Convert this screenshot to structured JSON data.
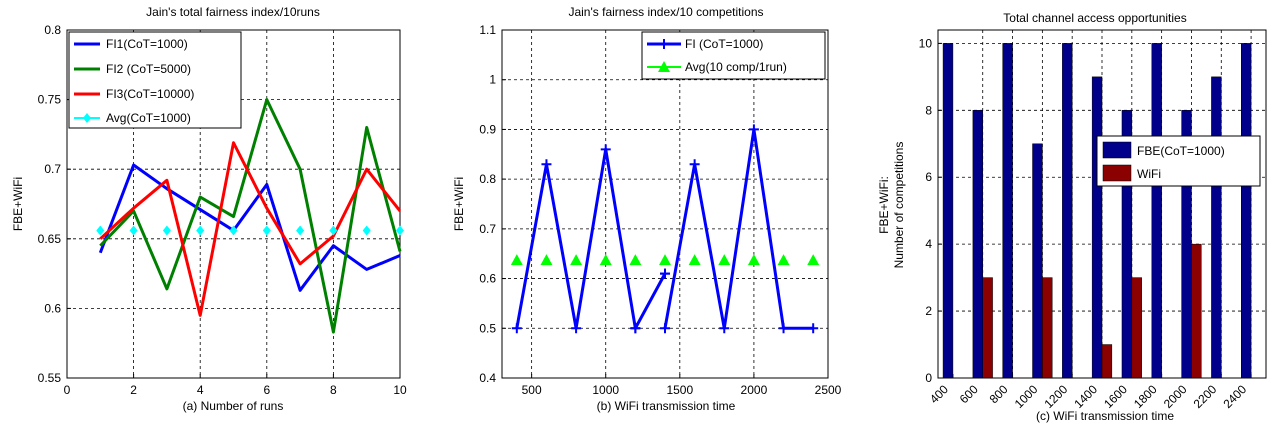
{
  "chart_data": [
    {
      "type": "line",
      "title": "Jain's total fairness index/10runs",
      "xlabel": "(a) Number of runs",
      "ylabel": "FBE+WiFi",
      "xlim": [
        0,
        10
      ],
      "ylim": [
        0.55,
        0.8
      ],
      "xticks": [
        0,
        2,
        4,
        6,
        8,
        10
      ],
      "yticks": [
        0.55,
        0.6,
        0.65,
        0.7,
        0.75,
        0.8
      ],
      "grid": true,
      "legend_position": "top-left",
      "series": [
        {
          "name": "FI1(CoT=1000)",
          "color": "#0000ff",
          "marker": "none",
          "x": [
            1,
            2,
            3,
            4,
            5,
            6,
            7,
            8,
            9,
            10
          ],
          "y": [
            0.64,
            0.703,
            0.686,
            0.671,
            0.656,
            0.689,
            0.613,
            0.645,
            0.628,
            0.638
          ]
        },
        {
          "name": "FI2 (CoT=5000)",
          "color": "#008000",
          "marker": "none",
          "x": [
            1,
            2,
            3,
            4,
            5,
            6,
            7,
            8,
            9,
            10
          ],
          "y": [
            0.645,
            0.67,
            0.614,
            0.68,
            0.666,
            0.75,
            0.7,
            0.583,
            0.73,
            0.641
          ]
        },
        {
          "name": "FI3(CoT=10000)",
          "color": "#ff0000",
          "marker": "none",
          "x": [
            1,
            2,
            3,
            4,
            5,
            6,
            7,
            8,
            9,
            10
          ],
          "y": [
            0.65,
            0.672,
            0.692,
            0.595,
            0.719,
            0.672,
            0.632,
            0.652,
            0.7,
            0.67
          ]
        },
        {
          "name": "Avg(CoT=1000)",
          "color": "#00ffff",
          "marker": "diamond",
          "line": false,
          "x": [
            1,
            2,
            3,
            4,
            5,
            6,
            7,
            8,
            9,
            10
          ],
          "y": [
            0.656,
            0.656,
            0.656,
            0.656,
            0.656,
            0.656,
            0.656,
            0.656,
            0.656,
            0.656
          ]
        }
      ]
    },
    {
      "type": "line",
      "title": "Jain's fairness index/10 competitions",
      "xlabel": "(b) WiFi transmission time",
      "ylabel": "FBE+WiFi",
      "xlim": [
        300,
        2500
      ],
      "ylim": [
        0.4,
        1.1
      ],
      "xticks": [
        500,
        1000,
        1500,
        2000,
        2500
      ],
      "yticks": [
        0.4,
        0.5,
        0.6,
        0.7,
        0.8,
        0.9,
        1,
        1.1
      ],
      "grid": true,
      "legend_position": "top-right",
      "series": [
        {
          "name": "FI (CoT=1000)",
          "color": "#0000ff",
          "marker": "plus",
          "segments": [
            {
              "x": [
                400,
                600,
                800,
                1000,
                1200
              ],
              "y": [
                0.5,
                0.83,
                0.5,
                0.86,
                0.5
              ]
            },
            {
              "x": [
                1200,
                1400
              ],
              "y": [
                0.5,
                0.61
              ]
            },
            {
              "x": [
                1400
              ],
              "y": [
                0.61
              ]
            },
            {
              "x": [
                1400,
                1600,
                1800,
                2000,
                2200,
                2400
              ],
              "y": [
                0.5,
                0.83,
                0.5,
                0.9,
                0.5,
                0.5
              ]
            }
          ]
        },
        {
          "name": "Avg(10 comp/1run)",
          "color": "#00ff00",
          "marker": "triangle",
          "line": false,
          "x": [
            400,
            600,
            800,
            1000,
            1200,
            1400,
            1600,
            1800,
            2000,
            2200,
            2400
          ],
          "y": [
            0.637,
            0.637,
            0.637,
            0.637,
            0.637,
            0.637,
            0.637,
            0.637,
            0.637,
            0.637,
            0.637
          ]
        }
      ]
    },
    {
      "type": "bar",
      "title": "Total channel access opportunities",
      "xlabel": "(c) WiFi transmission time",
      "ylabel": "FBE+WiFi:",
      "ylabel2": "Number of competitions",
      "ylim": [
        0,
        10.4
      ],
      "yticks": [
        0,
        2,
        4,
        6,
        8,
        10
      ],
      "grid": true,
      "legend_position": "center-right",
      "categories": [
        "400",
        "600",
        "800",
        "1000",
        "1200",
        "1400",
        "1600",
        "1800",
        "2000",
        "2200",
        "2400"
      ],
      "tick_labels": [
        "400",
        "600",
        "800",
        "1000",
        "1200",
        "1400",
        "1600",
        "1800",
        "2000",
        "2200",
        "2400"
      ],
      "series": [
        {
          "name": "FBE(CoT=1000)",
          "color": "#00008b",
          "values": [
            10,
            8,
            10,
            7,
            10,
            9,
            8,
            10,
            8,
            9,
            10
          ]
        },
        {
          "name": "WiFi",
          "color": "#8b0000",
          "values": [
            0,
            3,
            0,
            3,
            0,
            1,
            3,
            0,
            4,
            0,
            0
          ]
        }
      ]
    }
  ]
}
